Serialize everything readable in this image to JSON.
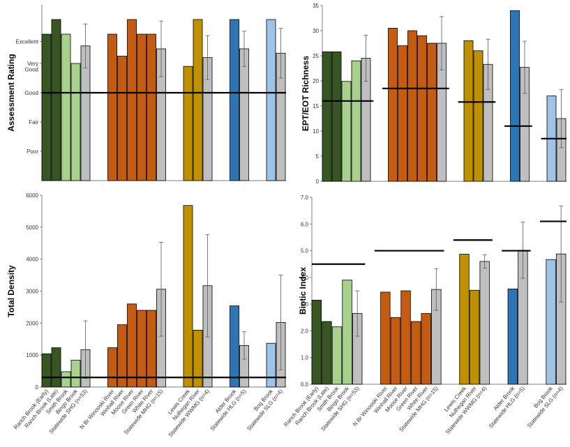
{
  "categories": [
    "Ranch Brook (Early)",
    "Ranch Brook (Late)",
    "Smith Brook",
    "Bingo Brook",
    "Statewide SHG (n=53)",
    "N Br Winooski River",
    "Winhall River",
    "Moose River",
    "Green River",
    "White River",
    "Statewide MHG (n=15)",
    "Lewis Creek",
    "Nulhegan River",
    "Statewide WWMG (n=4)",
    "Alder Brook",
    "Statewide HLG (n=5)",
    "Bog Brook",
    "Statewide SLG (n=4)"
  ],
  "colors": {
    "dark_green": "#375623",
    "light_green": "#a9d18e",
    "orange": "#c55a11",
    "gold": "#bf9000",
    "blue": "#2e75b6",
    "light_blue": "#9dc3e6",
    "gray": "#bfbfbf"
  },
  "bar_colors": [
    "dark_green",
    "dark_green",
    "light_green",
    "light_green",
    "gray",
    "orange",
    "orange",
    "orange",
    "orange",
    "orange",
    "gray",
    "gold",
    "gold",
    "gray",
    "blue",
    "gray",
    "light_blue",
    "gray"
  ],
  "chart_data": [
    {
      "type": "bar",
      "ylabel": "Assessment Rating",
      "ylim": [
        0,
        6
      ],
      "yticks": [
        {
          "value": 1,
          "label": "Poor"
        },
        {
          "value": 2,
          "label": "Fair"
        },
        {
          "value": 3,
          "label": "Good"
        },
        {
          "value": 4,
          "label": "Very"
        },
        {
          "value": 4.75,
          "label": "Excellent"
        }
      ],
      "ytick_extra": {
        "value": 3.8,
        "label": "Good"
      },
      "values": [
        5,
        5.5,
        5,
        4,
        4.6,
        5,
        4.25,
        5.5,
        5,
        5,
        4.5,
        3.9,
        5.5,
        4.2,
        5.5,
        4.5,
        5.5,
        4.35
      ],
      "errors": [
        null,
        null,
        null,
        null,
        0.75,
        null,
        null,
        null,
        null,
        null,
        0.95,
        null,
        null,
        0.75,
        null,
        0.6,
        null,
        0.85
      ],
      "thresholds": [
        {
          "from": 0,
          "to": 17,
          "value": 3
        }
      ],
      "show_category_labels": false
    },
    {
      "type": "bar",
      "ylabel": "EPT/EOT Richness",
      "ylim": [
        0,
        35
      ],
      "yticks": [
        {
          "value": 0,
          "label": "0"
        },
        {
          "value": 5,
          "label": "5"
        },
        {
          "value": 10,
          "label": "10"
        },
        {
          "value": 15,
          "label": "15"
        },
        {
          "value": 20,
          "label": "20"
        },
        {
          "value": 25,
          "label": "25"
        },
        {
          "value": 30,
          "label": "30"
        },
        {
          "value": 35,
          "label": "35"
        }
      ],
      "values": [
        25.8,
        25.8,
        19.9,
        24,
        24.5,
        30.5,
        27,
        30,
        29,
        27.5,
        27.5,
        28,
        26,
        23.3,
        34,
        22.7,
        17,
        12.5
      ],
      "errors": [
        null,
        null,
        null,
        null,
        4.6,
        null,
        null,
        null,
        null,
        null,
        5.3,
        null,
        null,
        5,
        null,
        5.2,
        null,
        5.8
      ],
      "thresholds": [
        {
          "from": 0,
          "to": 4,
          "value": 16
        },
        {
          "from": 5,
          "to": 10,
          "value": 18.5
        },
        {
          "from": 11,
          "to": 13,
          "value": 15.8
        },
        {
          "from": 14,
          "to": 15,
          "value": 11
        },
        {
          "from": 16,
          "to": 17,
          "value": 8.5
        }
      ],
      "show_category_labels": false
    },
    {
      "type": "bar",
      "ylabel": "Total Density",
      "ylim": [
        0,
        6000
      ],
      "yticks": [
        {
          "value": 0,
          "label": "0"
        },
        {
          "value": 1000,
          "label": "1000"
        },
        {
          "value": 2000,
          "label": "2000"
        },
        {
          "value": 3000,
          "label": "3000"
        },
        {
          "value": 4000,
          "label": "4000"
        },
        {
          "value": 5000,
          "label": "5000"
        },
        {
          "value": 6000,
          "label": "6000"
        }
      ],
      "values": [
        1040,
        1230,
        480,
        840,
        1170,
        1230,
        1950,
        2600,
        2400,
        2400,
        3060,
        5680,
        1780,
        3170,
        2540,
        1300,
        1370,
        2020
      ],
      "errors": [
        null,
        null,
        null,
        null,
        900,
        null,
        null,
        null,
        null,
        null,
        1470,
        null,
        null,
        1600,
        null,
        430,
        null,
        1480
      ],
      "thresholds": [
        {
          "from": 0,
          "to": 17,
          "value": 300
        }
      ],
      "show_category_labels": true
    },
    {
      "type": "bar",
      "ylabel": "Biotic Index",
      "ylim": [
        0,
        7
      ],
      "yticks": [
        {
          "value": 0,
          "label": "0.0"
        },
        {
          "value": 1,
          "label": "1.0"
        },
        {
          "value": 2,
          "label": "2.0"
        },
        {
          "value": 3,
          "label": "3.0"
        },
        {
          "value": 4,
          "label": "4.0"
        },
        {
          "value": 5,
          "label": "5.0"
        },
        {
          "value": 6,
          "label": "6.0"
        },
        {
          "value": 7,
          "label": "7.0"
        }
      ],
      "values": [
        3.15,
        2.35,
        2.15,
        3.9,
        2.65,
        3.45,
        2.5,
        3.5,
        2.35,
        2.65,
        3.55,
        4.87,
        3.52,
        4.6,
        3.57,
        5.02,
        4.67,
        4.88
      ],
      "errors": [
        null,
        null,
        null,
        null,
        0.85,
        null,
        null,
        null,
        null,
        null,
        0.78,
        null,
        null,
        0.25,
        null,
        1.05,
        null,
        1.8
      ],
      "thresholds": [
        {
          "from": 0,
          "to": 4,
          "value": 4.5
        },
        {
          "from": 5,
          "to": 10,
          "value": 5
        },
        {
          "from": 11,
          "to": 13,
          "value": 5.4
        },
        {
          "from": 14,
          "to": 15,
          "value": 5
        },
        {
          "from": 16,
          "to": 17,
          "value": 6.1
        }
      ],
      "show_category_labels": true
    }
  ]
}
